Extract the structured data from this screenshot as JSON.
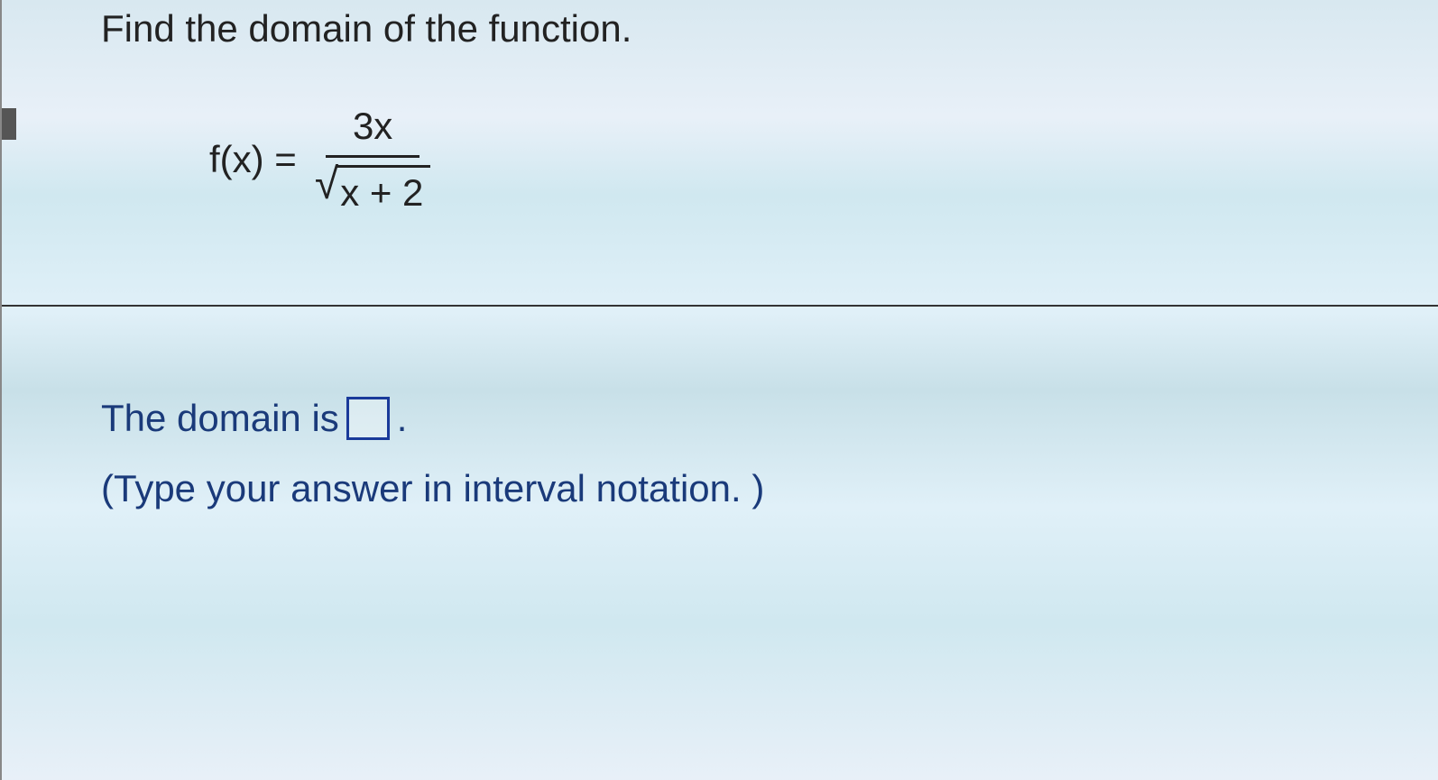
{
  "question": {
    "prompt": "Find the domain of the function.",
    "formula": {
      "lhs": "f(x) =",
      "numerator": "3x",
      "radicand": "x + 2"
    }
  },
  "answer": {
    "prefix": "The domain is",
    "suffix": ".",
    "input_value": ""
  },
  "hint": "(Type your answer in interval notation. )",
  "colors": {
    "text_dark": "#222222",
    "text_blue": "#1a3a7a",
    "input_border": "#1a3a9a",
    "divider": "#333333"
  },
  "typography": {
    "body_fontsize": 42,
    "font_family": "Arial"
  }
}
